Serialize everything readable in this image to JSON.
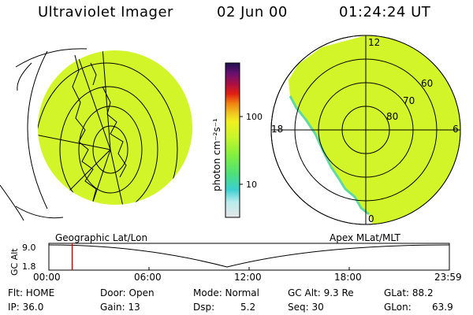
{
  "header": {
    "title": "Ultraviolet Imager",
    "date": "02 Jun 00",
    "time": "01:24:24 UT"
  },
  "colorbar": {
    "label": "photon cm⁻²s⁻¹",
    "ticks": [
      "100",
      "10"
    ],
    "colors": [
      "#e6e6e6",
      "#b8ecec",
      "#3ccfd0",
      "#4ce07a",
      "#80f040",
      "#c8f52a",
      "#f0f020",
      "#f0c020",
      "#f08010",
      "#e02010",
      "#b01040",
      "#6a1070",
      "#201050"
    ]
  },
  "map_labels": {
    "left": "Geographic Lat/Lon",
    "right": "Apex MLat/MLT"
  },
  "polar_grid": {
    "mlt_labels": [
      "12",
      "18",
      "6",
      "0"
    ],
    "lat_labels": [
      "60",
      "70",
      "80"
    ]
  },
  "altitude_plot": {
    "ylabel": "GC Alt",
    "yticks": [
      "9.0",
      "1.8"
    ],
    "xticks": [
      "00:00",
      "06:00",
      "12:00",
      "18:00",
      "23:59"
    ],
    "current_hour": 1.4
  },
  "footer": {
    "row1": [
      "Flt: HOME",
      "Door: Open",
      "Mode: Normal",
      "GC Alt: 9.3 Re",
      "GLat: 88.2"
    ],
    "row2": [
      "IP: 36.0",
      "Gain: 13",
      "Dsp:",
      "5.2",
      "Seq: 30",
      "GLon:",
      "63.9"
    ]
  }
}
